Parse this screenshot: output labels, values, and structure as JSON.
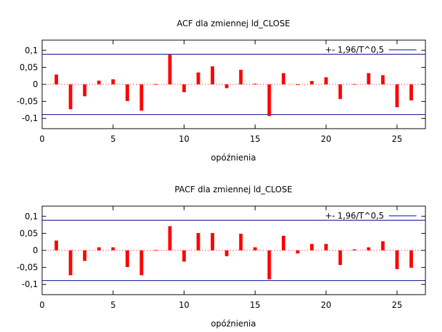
{
  "chart_data": [
    {
      "type": "bar",
      "title": "ACF dla zmiennej ld_CLOSE",
      "xlabel": "opóźnienia",
      "ylabel": "",
      "xlim": [
        0,
        27
      ],
      "ylim": [
        -0.13,
        0.13
      ],
      "x_ticks": [
        0,
        5,
        10,
        15,
        20,
        25
      ],
      "x_tick_labels": [
        "0",
        "5",
        "10",
        "15",
        "20",
        "25"
      ],
      "y_ticks": [
        0.1,
        0.05,
        0,
        -0.05,
        -0.1
      ],
      "y_tick_labels": [
        "0,1",
        "0,05",
        "0",
        "-0,05",
        "-0,1"
      ],
      "x": [
        1,
        2,
        3,
        4,
        5,
        6,
        7,
        8,
        9,
        10,
        11,
        12,
        13,
        14,
        15,
        16,
        17,
        18,
        19,
        20,
        21,
        22,
        23,
        24,
        25,
        26
      ],
      "values": [
        0.029,
        -0.073,
        -0.035,
        0.011,
        0.015,
        -0.049,
        -0.077,
        0.001,
        0.087,
        -0.023,
        0.035,
        0.053,
        -0.011,
        0.043,
        0.002,
        -0.093,
        0.033,
        -0.001,
        0.01,
        0.021,
        -0.043,
        0.001,
        0.033,
        0.027,
        -0.067,
        -0.047
      ],
      "bar_color": "#ff0000",
      "zero_line_color": "#ff0000",
      "band": {
        "label": "+- 1,96/T^0,5",
        "value": 0.0885,
        "color": "#00008b"
      },
      "legend_position": "top-right",
      "grid": false
    },
    {
      "type": "bar",
      "title": "PACF dla zmiennej ld_CLOSE",
      "xlabel": "opóźnienia",
      "ylabel": "",
      "xlim": [
        0,
        27
      ],
      "ylim": [
        -0.13,
        0.13
      ],
      "x_ticks": [
        0,
        5,
        10,
        15,
        20,
        25
      ],
      "x_tick_labels": [
        "0",
        "5",
        "10",
        "15",
        "20",
        "25"
      ],
      "y_ticks": [
        0.1,
        0.05,
        0,
        -0.05,
        -0.1
      ],
      "y_tick_labels": [
        "0,1",
        "0,05",
        "0",
        "-0,05",
        "-0,1"
      ],
      "x": [
        1,
        2,
        3,
        4,
        5,
        6,
        7,
        8,
        9,
        10,
        11,
        12,
        13,
        14,
        15,
        16,
        17,
        18,
        19,
        20,
        21,
        22,
        23,
        24,
        25,
        26
      ],
      "values": [
        0.029,
        -0.073,
        -0.031,
        0.009,
        0.009,
        -0.049,
        -0.073,
        0.001,
        0.071,
        -0.033,
        0.051,
        0.051,
        -0.017,
        0.049,
        0.009,
        -0.085,
        0.043,
        -0.009,
        0.019,
        0.019,
        -0.043,
        0.003,
        0.009,
        0.027,
        -0.055,
        -0.051
      ],
      "bar_color": "#ff0000",
      "zero_line_color": "#ff0000",
      "band": {
        "label": "+- 1,96/T^0,5",
        "value": 0.0885,
        "color": "#00008b"
      },
      "legend_position": "top-right",
      "grid": false
    }
  ]
}
